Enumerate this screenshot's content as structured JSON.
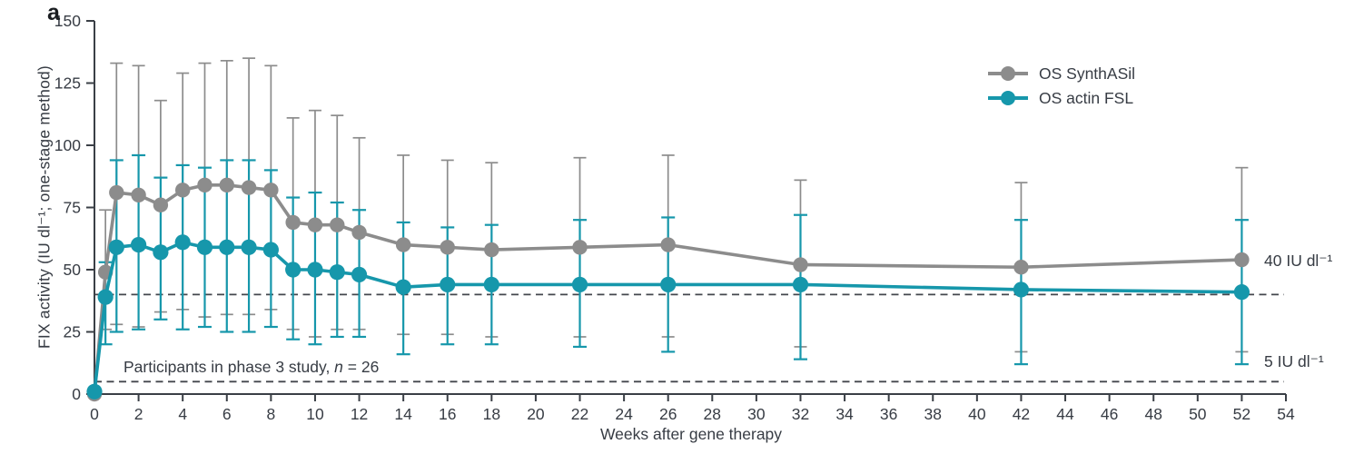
{
  "panel_label": "a",
  "chart_data": {
    "type": "line",
    "title": "",
    "xlabel": "Weeks after gene therapy",
    "ylabel": "FIX activity (IU dl⁻¹; one-stage method)",
    "xlim": [
      0,
      54
    ],
    "ylim": [
      0,
      150
    ],
    "xticks": [
      0,
      2,
      4,
      6,
      8,
      10,
      12,
      14,
      16,
      18,
      20,
      22,
      24,
      26,
      28,
      30,
      32,
      34,
      36,
      38,
      40,
      42,
      44,
      46,
      48,
      50,
      52,
      54
    ],
    "yticks": [
      0,
      25,
      50,
      75,
      100,
      125,
      150
    ],
    "grid": false,
    "legend_position": "top-right",
    "x": [
      0,
      0.5,
      1,
      2,
      3,
      4,
      5,
      6,
      7,
      8,
      9,
      10,
      11,
      12,
      14,
      16,
      18,
      22,
      26,
      32,
      42,
      52
    ],
    "series": [
      {
        "name": "OS SynthASil",
        "color": "#8c8c8c",
        "values": [
          0,
          49,
          81,
          80,
          76,
          82,
          84,
          84,
          83,
          82,
          69,
          68,
          68,
          65,
          60,
          59,
          58,
          59,
          60,
          52,
          51,
          54
        ],
        "err_high": [
          null,
          74,
          133,
          132,
          118,
          129,
          133,
          134,
          135,
          132,
          111,
          114,
          112,
          103,
          96,
          94,
          93,
          95,
          96,
          86,
          85,
          91
        ],
        "err_low": [
          null,
          26,
          28,
          27,
          33,
          34,
          31,
          32,
          32,
          34,
          26,
          23,
          26,
          26,
          24,
          24,
          23,
          23,
          23,
          19,
          17,
          17
        ]
      },
      {
        "name": "OS actin FSL",
        "color": "#1697ab",
        "values": [
          1,
          39,
          59,
          60,
          57,
          61,
          59,
          59,
          59,
          58,
          50,
          50,
          49,
          48,
          43,
          44,
          44,
          44,
          44,
          44,
          42,
          41
        ],
        "err_high": [
          null,
          53,
          94,
          96,
          87,
          92,
          91,
          94,
          94,
          90,
          79,
          81,
          77,
          74,
          69,
          67,
          68,
          70,
          71,
          72,
          70,
          70
        ],
        "err_low": [
          null,
          20,
          25,
          26,
          30,
          26,
          27,
          25,
          25,
          27,
          22,
          20,
          23,
          23,
          16,
          20,
          20,
          19,
          17,
          14,
          12,
          12
        ]
      }
    ],
    "reference_lines": [
      {
        "y": 40,
        "label": "40 IU dl⁻¹"
      },
      {
        "y": 5,
        "label": "5 IU dl⁻¹"
      }
    ],
    "annotation": {
      "prefix": "Participants in phase 3 study, ",
      "italic": "n",
      "suffix": " = 26"
    }
  }
}
